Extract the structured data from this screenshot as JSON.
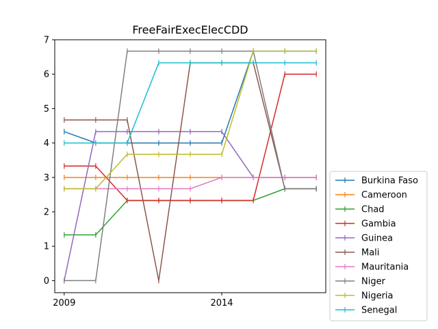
{
  "chart_data": {
    "type": "line",
    "title": "FreeFairExecElecCDD",
    "xlabel": "",
    "ylabel": "",
    "x": [
      2009,
      2010,
      2011,
      2012,
      2013,
      2014,
      2015,
      2016,
      2017
    ],
    "xlim": [
      2008.7,
      2017.3
    ],
    "ylim": [
      -0.35,
      7
    ],
    "xticks": [
      2009,
      2014
    ],
    "yticks": [
      0,
      1,
      2,
      3,
      4,
      5,
      6,
      7
    ],
    "grid": false,
    "legend_position": "lower-right outside",
    "series": [
      {
        "name": "Burkina Faso",
        "color": "#1f77b4",
        "values": [
          4.33,
          4.0,
          4.0,
          4.0,
          4.0,
          4.0,
          6.67,
          6.67,
          6.67
        ]
      },
      {
        "name": "Cameroon",
        "color": "#ff7f0e",
        "values": [
          3.0,
          3.0,
          3.0,
          3.0,
          3.0,
          3.0,
          3.0,
          3.0,
          3.0
        ]
      },
      {
        "name": "Chad",
        "color": "#2ca02c",
        "values": [
          1.33,
          1.33,
          2.33,
          2.33,
          2.33,
          2.33,
          2.33,
          2.67,
          2.67
        ]
      },
      {
        "name": "Gambia",
        "color": "#d62728",
        "values": [
          3.33,
          3.33,
          2.33,
          2.33,
          2.33,
          2.33,
          2.33,
          6.0,
          6.0
        ]
      },
      {
        "name": "Guinea",
        "color": "#9467bd",
        "values": [
          0.0,
          4.33,
          4.33,
          4.33,
          4.33,
          4.33,
          3.0,
          3.0,
          3.0
        ]
      },
      {
        "name": "Mali",
        "color": "#8c564b",
        "values": [
          4.67,
          4.67,
          4.67,
          0.0,
          6.33,
          6.33,
          6.33,
          2.67,
          2.67
        ]
      },
      {
        "name": "Mauritania",
        "color": "#e377c2",
        "values": [
          2.67,
          2.67,
          2.67,
          2.67,
          2.67,
          3.0,
          3.0,
          3.0,
          3.0
        ]
      },
      {
        "name": "Niger",
        "color": "#7f7f7f",
        "values": [
          0.0,
          0.0,
          6.67,
          6.67,
          6.67,
          6.67,
          6.67,
          2.67,
          2.67
        ]
      },
      {
        "name": "Nigeria",
        "color": "#bcbd22",
        "values": [
          2.67,
          2.67,
          3.67,
          3.67,
          3.67,
          3.67,
          6.67,
          6.67,
          6.67
        ]
      },
      {
        "name": "Senegal",
        "color": "#17becf",
        "values": [
          4.0,
          4.0,
          4.0,
          6.33,
          6.33,
          6.33,
          6.33,
          6.33,
          6.33
        ]
      }
    ]
  }
}
